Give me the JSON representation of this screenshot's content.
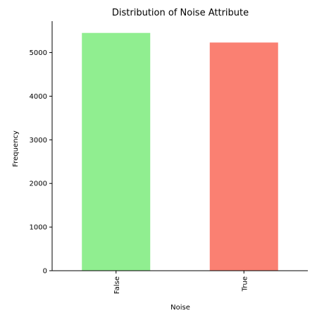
{
  "chart_data": {
    "type": "bar",
    "title": "Distribution of Noise Attribute",
    "xlabel": "Noise",
    "ylabel": "Frequency",
    "categories": [
      "False",
      "True"
    ],
    "values": [
      5450,
      5230
    ],
    "bar_colors": [
      "#90ee90",
      "#fa8072"
    ],
    "yticks": [
      0,
      1000,
      2000,
      3000,
      4000,
      5000
    ],
    "ytick_labels": [
      "0",
      "1000",
      "2000",
      "3000",
      "4000",
      "5000"
    ],
    "ylim": [
      0,
      5720
    ],
    "grid": false,
    "legend": "none"
  }
}
